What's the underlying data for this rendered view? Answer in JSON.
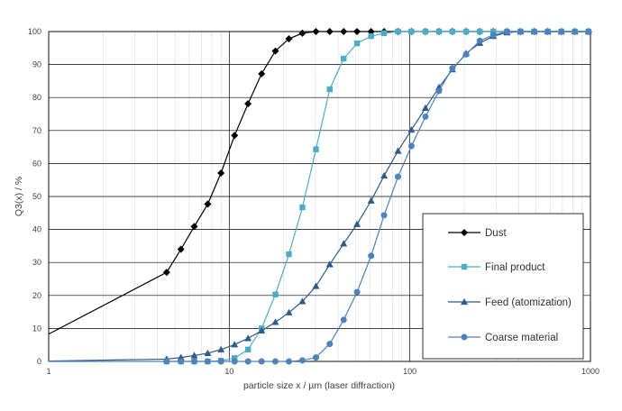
{
  "chart_data": {
    "type": "line",
    "xscale": "log",
    "xlim": [
      1,
      1000
    ],
    "ylim": [
      0,
      100
    ],
    "xticks": [
      "1",
      "10",
      "100",
      "1000"
    ],
    "yticks": [
      "0",
      "10",
      "20",
      "30",
      "40",
      "50",
      "60",
      "70",
      "80",
      "90",
      "100"
    ],
    "xlabel": "particle size x / µm (laser diffraction)",
    "ylabel": "Q3(x) / %",
    "grid": true,
    "legend_position": "bottom-right",
    "series": [
      {
        "name": "Dust",
        "color": "#000000",
        "marker": "diamond",
        "x": [
          1,
          4.5,
          5.4,
          6.4,
          7.6,
          9.0,
          10.7,
          12.7,
          15.1,
          18.0,
          21.4,
          25.4,
          30.2,
          36,
          43,
          51,
          61,
          72,
          86,
          102,
          122,
          145,
          172,
          205,
          244,
          290,
          345,
          410,
          488,
          580,
          690,
          820,
          975
        ],
        "y": [
          8.3,
          27.0,
          34.0,
          40.9,
          47.7,
          57.1,
          68.5,
          78.1,
          87.2,
          94.1,
          97.8,
          99.5,
          100,
          100,
          100,
          100,
          100,
          100,
          100,
          100,
          100,
          100,
          100,
          100,
          100,
          100,
          100,
          100,
          100,
          100,
          100,
          100,
          100
        ]
      },
      {
        "name": "Final product",
        "color": "#4bacc6",
        "marker": "square",
        "x": [
          4.5,
          5.4,
          6.4,
          7.6,
          9.0,
          10.7,
          12.7,
          15.1,
          18.0,
          21.4,
          25.4,
          30.2,
          36,
          43,
          51,
          61,
          72,
          86,
          102,
          122,
          145,
          172,
          205,
          244,
          290,
          345,
          410,
          488,
          580,
          690,
          820,
          975
        ],
        "y": [
          0,
          0,
          0,
          0,
          0.2,
          1.0,
          3.6,
          10.0,
          20.3,
          32.5,
          46.7,
          64.3,
          82.5,
          91.8,
          96.4,
          98.6,
          99.5,
          100,
          100,
          100,
          100,
          100,
          100,
          100,
          100,
          100,
          100,
          100,
          100,
          100,
          100,
          100
        ]
      },
      {
        "name": "Feed (atomization)",
        "color": "#2e5c8a",
        "marker": "triangle",
        "x": [
          1,
          4.5,
          5.4,
          6.4,
          7.6,
          9.0,
          10.7,
          12.7,
          15.1,
          18.0,
          21.4,
          25.4,
          30.2,
          36,
          43,
          51,
          61,
          72,
          86,
          102,
          122,
          145,
          172,
          205,
          244,
          290,
          345,
          410,
          488,
          580,
          690,
          820,
          975
        ],
        "y": [
          0.1,
          0.7,
          1.2,
          1.8,
          2.5,
          3.6,
          5.1,
          7.0,
          9.3,
          11.9,
          14.8,
          18.2,
          22.8,
          29.4,
          35.7,
          41.6,
          48.7,
          56.3,
          63.8,
          70.2,
          76.8,
          83.1,
          88.5,
          93.4,
          96.5,
          98.6,
          99.7,
          100,
          100,
          100,
          100,
          100,
          100
        ]
      },
      {
        "name": "Coarse material",
        "color": "#4f81bd",
        "marker": "circle",
        "x": [
          1,
          4.5,
          5.4,
          6.4,
          7.6,
          9.0,
          10.7,
          12.7,
          15.1,
          18.0,
          21.4,
          25.4,
          30.2,
          36,
          43,
          51,
          61,
          72,
          86,
          102,
          122,
          145,
          172,
          205,
          244,
          290,
          345,
          410,
          488,
          580,
          690,
          820,
          975
        ],
        "y": [
          0,
          0,
          0,
          0,
          0,
          0,
          0,
          0,
          0,
          0,
          0,
          0.3,
          1.2,
          5.3,
          12.6,
          21.0,
          32.0,
          44.3,
          56.0,
          65.3,
          74.2,
          82.0,
          88.9,
          93.1,
          97.2,
          99.0,
          100,
          100,
          100,
          100,
          100,
          100,
          100
        ]
      }
    ]
  }
}
